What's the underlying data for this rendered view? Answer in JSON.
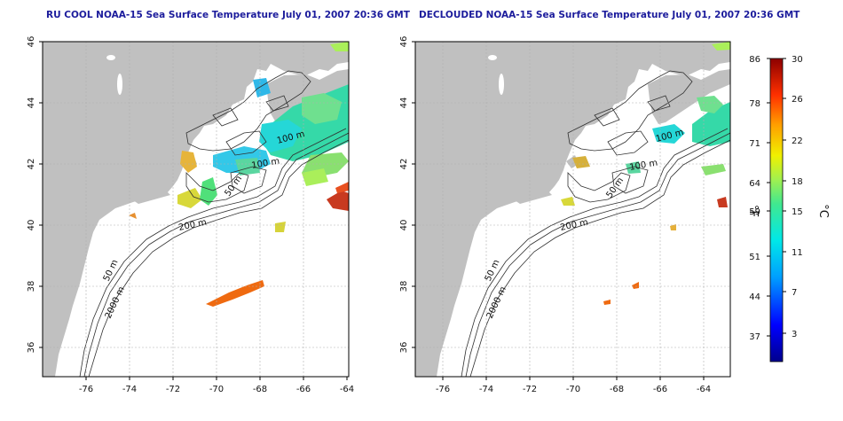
{
  "maps": [
    {
      "title": "RU COOL NOAA-15 Sea Surface Temperature July 01, 2007 20:36 GMT",
      "contour_labels": [
        "100 m",
        "100 m",
        "50 m",
        "200 m",
        "50 m",
        "2000 m"
      ]
    },
    {
      "title": "DECLOUDED NOAA-15 Sea Surface Temperature July 01, 2007 20:36 GMT",
      "contour_labels": [
        "100 m",
        "100 m",
        "50 m",
        "200 m",
        "50 m",
        "2000 m"
      ]
    }
  ],
  "axes": {
    "x_ticks": [
      "-76",
      "-74",
      "-72",
      "-70",
      "-68",
      "-66",
      "-64"
    ],
    "y_ticks": [
      "36",
      "38",
      "40",
      "42",
      "44",
      "46"
    ]
  },
  "colorbar": {
    "f_label": "°F",
    "c_label": "°C",
    "f_ticks": [
      "86",
      "78",
      "71",
      "64",
      "59",
      "51",
      "44",
      "37"
    ],
    "c_ticks": [
      "30",
      "26",
      "22",
      "18",
      "15",
      "11",
      "7",
      "3"
    ]
  },
  "colors": {
    "title": "#1c1c9c",
    "land": "#c0c0c0",
    "ocean": "#ffffff",
    "grid": "#b0b0b0"
  }
}
